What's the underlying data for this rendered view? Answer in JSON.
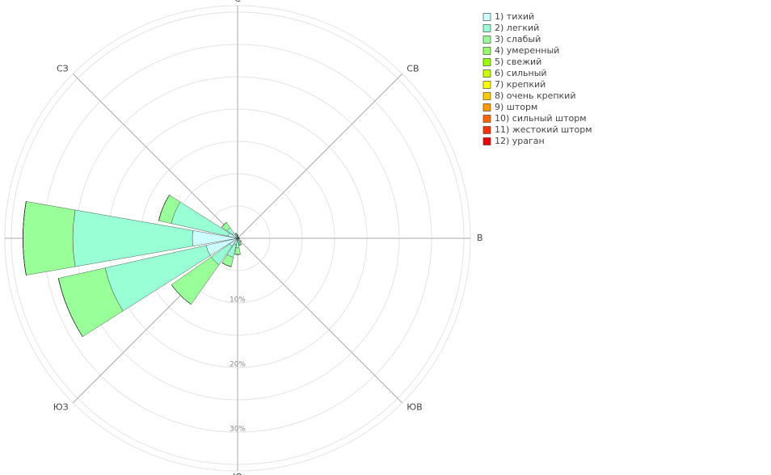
{
  "chart_data": {
    "type": "barpolar",
    "categories": [
      "С",
      null,
      "СВ",
      null,
      "В",
      null,
      "ЮВ",
      null,
      "Ю",
      null,
      "ЮЗ",
      null,
      "З",
      null,
      "СЗ",
      null
    ],
    "rlim": [
      0,
      36
    ],
    "rticks": [
      {
        "value": 10,
        "label": "10%"
      },
      {
        "value": 20,
        "label": "20%"
      },
      {
        "value": 30,
        "label": "30%"
      }
    ],
    "rgrid": [
      5,
      10,
      15,
      20,
      25,
      30,
      35
    ],
    "series": [
      {
        "name": "1) тихий",
        "color": "#ccffff",
        "values": [
          0.2,
          0.1,
          0.1,
          0.1,
          0.2,
          0.1,
          0.2,
          0.3,
          0.5,
          1,
          1.5,
          5,
          7,
          1.5,
          1,
          0.3
        ]
      },
      {
        "name": "2) легкий",
        "color": "#99ffd5",
        "values": [
          0.2,
          0.1,
          0.1,
          0.1,
          0.1,
          0.1,
          0.3,
          0.5,
          1,
          2,
          3.5,
          16,
          18.5,
          9,
          1,
          0.3
        ]
      },
      {
        "name": "3) слабый",
        "color": "#99ff99",
        "values": [
          0.1,
          0,
          0,
          0,
          0,
          0,
          0.2,
          0.3,
          1,
          1.5,
          7.5,
          7.4,
          7.7,
          2,
          1,
          0.2
        ]
      },
      {
        "name": "4) умеренный",
        "color": "#99ff66",
        "values": [
          0,
          0,
          0,
          0,
          0,
          0,
          0,
          0,
          0,
          0,
          0,
          0,
          0,
          0,
          0,
          0
        ]
      },
      {
        "name": "5) свежий",
        "color": "#99ff00",
        "values": [
          0,
          0,
          0,
          0,
          0,
          0,
          0,
          0,
          0,
          0,
          0,
          0,
          0,
          0,
          0,
          0
        ]
      },
      {
        "name": "6) сильный",
        "color": "#ccff00",
        "values": [
          0,
          0,
          0,
          0,
          0,
          0,
          0,
          0,
          0,
          0,
          0,
          0,
          0,
          0,
          0,
          0
        ]
      },
      {
        "name": "7) крепкий",
        "color": "#ffff00",
        "values": [
          0,
          0,
          0,
          0,
          0,
          0,
          0,
          0,
          0,
          0,
          0,
          0,
          0,
          0,
          0,
          0
        ]
      },
      {
        "name": "8) очень крепкий",
        "color": "#ffcc00",
        "values": [
          0,
          0,
          0,
          0,
          0,
          0,
          0,
          0,
          0,
          0,
          0,
          0,
          0,
          0,
          0,
          0
        ]
      },
      {
        "name": "9) шторм",
        "color": "#ff9900",
        "values": [
          0,
          0,
          0,
          0,
          0,
          0,
          0,
          0,
          0,
          0,
          0,
          0,
          0,
          0,
          0,
          0
        ]
      },
      {
        "name": "10) сильный шторм",
        "color": "#ff6600",
        "values": [
          0,
          0,
          0,
          0,
          0,
          0,
          0,
          0,
          0,
          0,
          0,
          0,
          0,
          0,
          0,
          0
        ]
      },
      {
        "name": "11) жестокий шторм",
        "color": "#ff3300",
        "values": [
          0,
          0,
          0,
          0,
          0,
          0,
          0,
          0,
          0,
          0,
          0,
          0,
          0,
          0,
          0,
          0
        ]
      },
      {
        "name": "12) ураган",
        "color": "#ee0000",
        "values": [
          0,
          0,
          0,
          0,
          0,
          0,
          0,
          0,
          0,
          0,
          0,
          0,
          0,
          0,
          0,
          0
        ]
      }
    ]
  }
}
